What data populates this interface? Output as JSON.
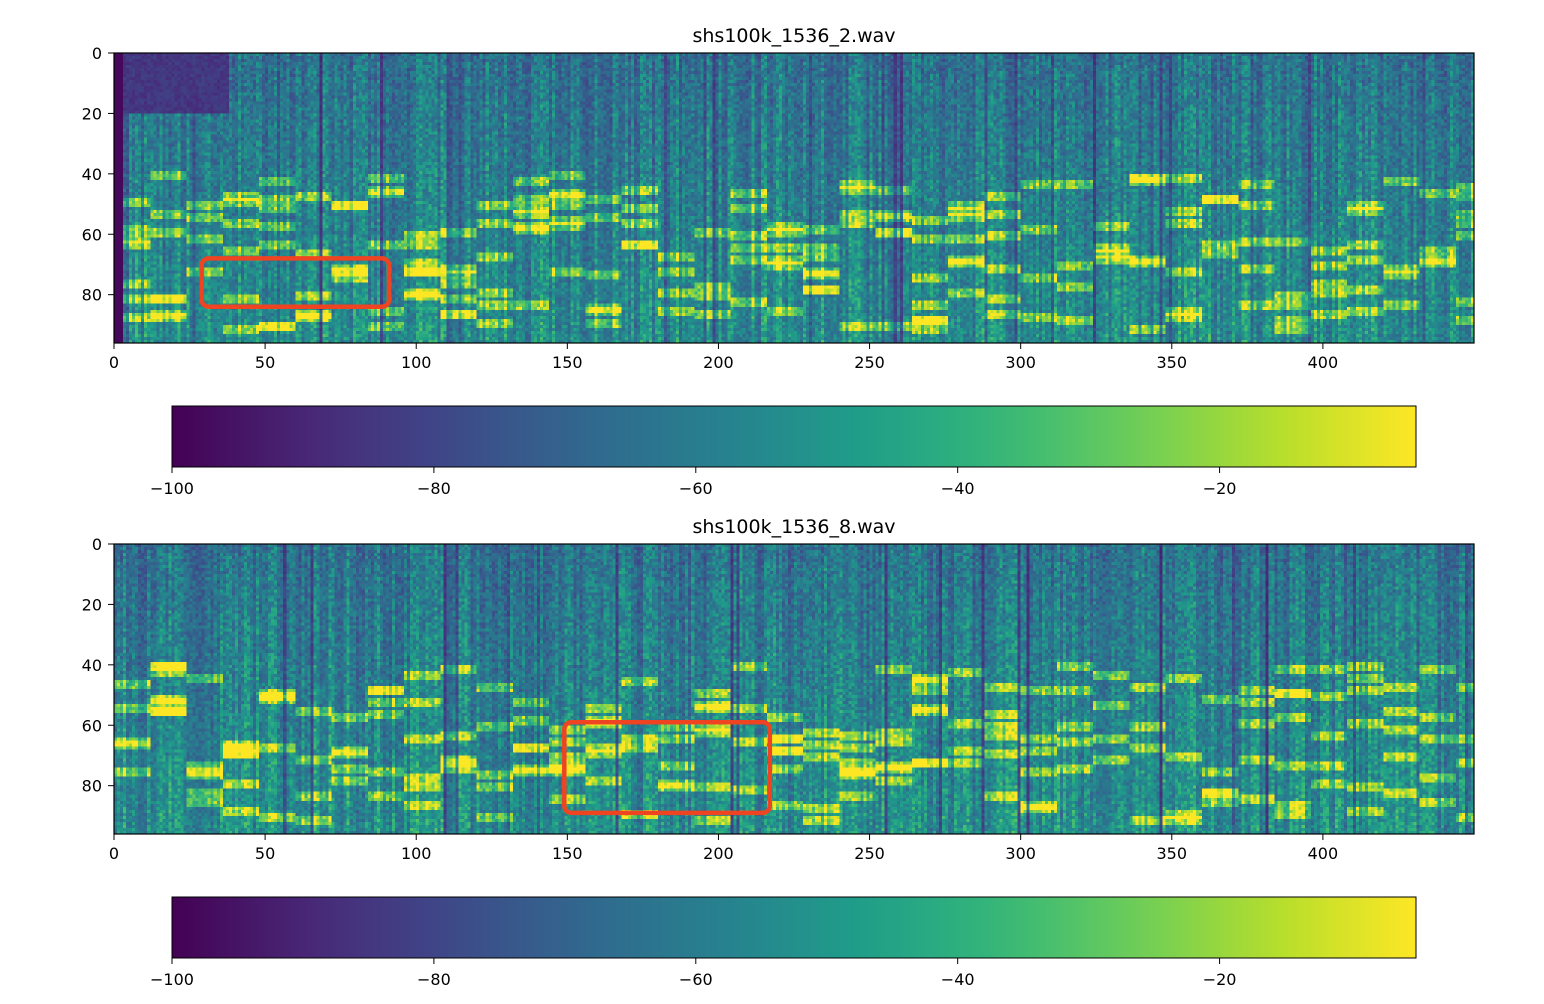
{
  "chart_data": [
    {
      "type": "heatmap",
      "title": "shs100k_1536_2.wav",
      "xlabel": "",
      "ylabel": "",
      "xlim": [
        0,
        450
      ],
      "ylim": [
        96,
        0
      ],
      "xticks": [
        0,
        50,
        100,
        150,
        200,
        250,
        300,
        350,
        400
      ],
      "yticks": [
        0,
        20,
        40,
        60,
        80
      ],
      "colormap": "viridis",
      "colorbar": {
        "orientation": "horizontal",
        "range": [
          -100,
          -5
        ],
        "ticks": [
          -100,
          -80,
          -60,
          -40,
          -20
        ],
        "tick_labels": [
          "−100",
          "−80",
          "−60",
          "−40",
          "−20"
        ]
      },
      "highlight": {
        "x_range": [
          29,
          91
        ],
        "y_range": [
          68,
          84
        ],
        "color": "#ee4422"
      },
      "description_seed": 2
    },
    {
      "type": "heatmap",
      "title": "shs100k_1536_8.wav",
      "xlabel": "",
      "ylabel": "",
      "xlim": [
        0,
        450
      ],
      "ylim": [
        96,
        0
      ],
      "xticks": [
        0,
        50,
        100,
        150,
        200,
        250,
        300,
        350,
        400
      ],
      "yticks": [
        0,
        20,
        40,
        60,
        80
      ],
      "colormap": "viridis",
      "colorbar": {
        "orientation": "horizontal",
        "range": [
          -100,
          -5
        ],
        "ticks": [
          -100,
          -80,
          -60,
          -40,
          -20
        ],
        "tick_labels": [
          "−100",
          "−80",
          "−60",
          "−40",
          "−20"
        ]
      },
      "highlight": {
        "x_range": [
          149,
          217
        ],
        "y_range": [
          59,
          89
        ],
        "color": "#ee4422"
      },
      "description_seed": 8
    }
  ]
}
